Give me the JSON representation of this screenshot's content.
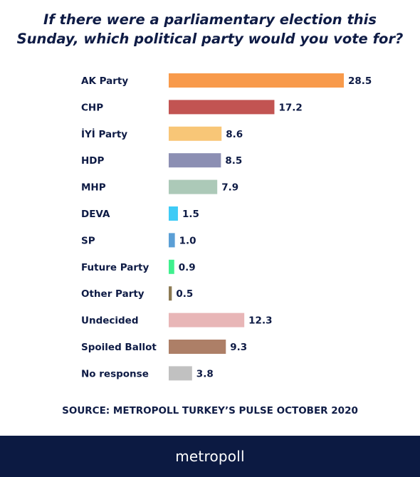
{
  "chart_data": {
    "type": "bar",
    "orientation": "horizontal",
    "title": "If there were a parliamentary election this Sunday, which political party would you vote for?",
    "title_lines": [
      "If there were a parliamentary election this",
      "Sunday, which political party would you vote for?"
    ],
    "categories": [
      "AK Party",
      "CHP",
      "İYİ Party",
      "HDP",
      "MHP",
      "DEVA",
      "SP",
      "Future Party",
      "Other Party",
      "Undecided",
      "Spoiled Ballot",
      "No response"
    ],
    "values": [
      28.5,
      17.2,
      8.6,
      8.5,
      7.9,
      1.5,
      1.0,
      0.9,
      0.5,
      12.3,
      9.3,
      3.8
    ],
    "value_labels": [
      "28.5",
      "17.2",
      "8.6",
      "8.5",
      "7.9",
      "1.5",
      "1.0",
      "0.9",
      "0.5",
      "12.3",
      "9.3",
      "3.8"
    ],
    "colors": [
      "#f89a4b",
      "#c25452",
      "#f8c677",
      "#8c8fb3",
      "#acc9b8",
      "#3ecbf6",
      "#5b9fd6",
      "#3ff08e",
      "#8c7a53",
      "#e8b6b7",
      "#ad7f67",
      "#c1c1c1"
    ],
    "xlim": [
      0,
      28.5
    ],
    "grid": false,
    "legend": "none"
  },
  "source": "SOURCE: METROPOLL TURKEY’S PULSE OCTOBER 2020",
  "brand": "metropoll"
}
